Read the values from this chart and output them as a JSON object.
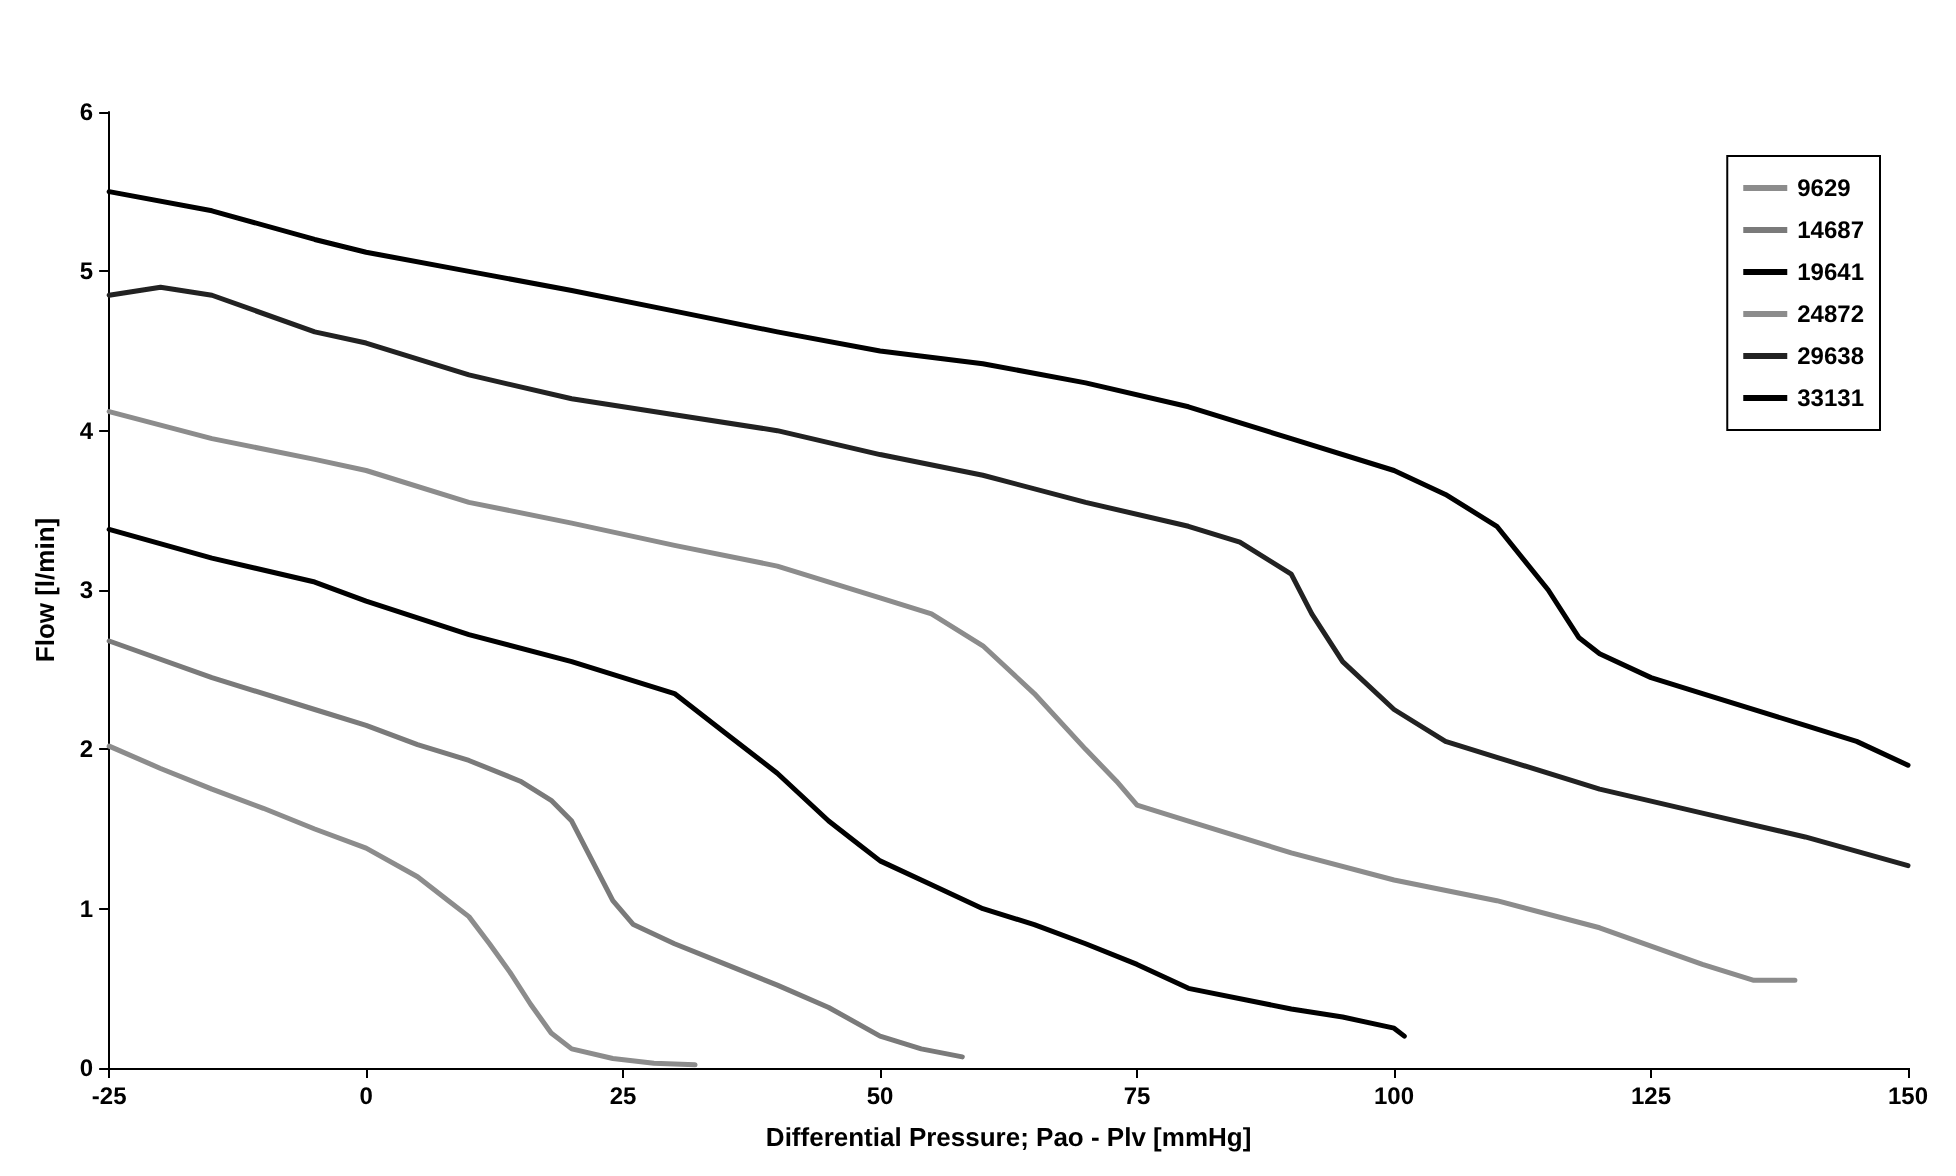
{
  "chart_data": {
    "type": "line",
    "xlabel": "Differential Pressure; Pao - Plv [mmHg]",
    "ylabel": "Flow [l/min]",
    "xlim": [
      -25,
      150
    ],
    "xticks": [
      -25,
      0,
      25,
      50,
      75,
      100,
      125,
      150
    ],
    "ylim": [
      0,
      6
    ],
    "yticks": [
      0,
      1,
      2,
      3,
      4,
      5,
      6
    ],
    "grid": false,
    "legend": "top right",
    "marker": "none",
    "line_style": "solid",
    "series": [
      {
        "name": "9629",
        "color": "#8c8c8c",
        "x": [
          -25,
          -20,
          -15,
          -10,
          -5,
          0,
          5,
          8,
          10,
          12,
          14,
          16,
          18,
          20,
          24,
          28,
          32
        ],
        "values": [
          2.02,
          1.88,
          1.75,
          1.63,
          1.5,
          1.38,
          1.2,
          1.05,
          0.95,
          0.78,
          0.6,
          0.4,
          0.22,
          0.12,
          0.06,
          0.03,
          0.02
        ]
      },
      {
        "name": "14687",
        "color": "#7a7a7a",
        "x": [
          -25,
          -15,
          -5,
          0,
          5,
          10,
          15,
          18,
          20,
          22,
          24,
          26,
          30,
          35,
          40,
          45,
          50,
          54,
          58
        ],
        "values": [
          2.68,
          2.45,
          2.25,
          2.15,
          2.03,
          1.93,
          1.8,
          1.68,
          1.55,
          1.3,
          1.05,
          0.9,
          0.78,
          0.65,
          0.52,
          0.38,
          0.2,
          0.12,
          0.07
        ]
      },
      {
        "name": "19641",
        "color": "#000000",
        "x": [
          -25,
          -15,
          -5,
          0,
          10,
          20,
          25,
          30,
          35,
          40,
          45,
          48,
          50,
          55,
          60,
          65,
          70,
          75,
          80,
          90,
          95,
          100,
          101
        ],
        "values": [
          3.38,
          3.2,
          3.05,
          2.93,
          2.72,
          2.55,
          2.45,
          2.35,
          2.1,
          1.85,
          1.55,
          1.4,
          1.3,
          1.15,
          1.0,
          0.9,
          0.78,
          0.65,
          0.5,
          0.37,
          0.32,
          0.25,
          0.2
        ]
      },
      {
        "name": "24872",
        "color": "#8c8c8c",
        "x": [
          -25,
          -15,
          -5,
          0,
          10,
          20,
          30,
          40,
          50,
          55,
          60,
          65,
          70,
          73,
          75,
          80,
          90,
          100,
          110,
          120,
          130,
          135,
          139
        ],
        "values": [
          4.12,
          3.95,
          3.82,
          3.75,
          3.55,
          3.42,
          3.28,
          3.15,
          2.95,
          2.85,
          2.65,
          2.35,
          2.0,
          1.8,
          1.65,
          1.55,
          1.35,
          1.18,
          1.05,
          0.88,
          0.65,
          0.55,
          0.55
        ]
      },
      {
        "name": "29638",
        "color": "#222222",
        "x": [
          -25,
          -20,
          -15,
          -5,
          0,
          10,
          20,
          30,
          40,
          50,
          60,
          70,
          80,
          85,
          90,
          92,
          95,
          100,
          105,
          110,
          120,
          130,
          140,
          150
        ],
        "values": [
          4.85,
          4.9,
          4.85,
          4.62,
          4.55,
          4.35,
          4.2,
          4.1,
          4.0,
          3.85,
          3.72,
          3.55,
          3.4,
          3.3,
          3.1,
          2.85,
          2.55,
          2.25,
          2.05,
          1.95,
          1.75,
          1.6,
          1.45,
          1.27
        ]
      },
      {
        "name": "33131",
        "color": "#000000",
        "x": [
          -25,
          -15,
          -5,
          0,
          10,
          20,
          30,
          40,
          50,
          60,
          70,
          80,
          90,
          100,
          105,
          110,
          115,
          118,
          120,
          125,
          130,
          140,
          145,
          150
        ],
        "values": [
          5.5,
          5.38,
          5.2,
          5.12,
          5.0,
          4.88,
          4.75,
          4.62,
          4.5,
          4.42,
          4.3,
          4.15,
          3.95,
          3.75,
          3.6,
          3.4,
          3.0,
          2.7,
          2.6,
          2.45,
          2.35,
          2.15,
          2.05,
          1.9
        ]
      }
    ]
  }
}
